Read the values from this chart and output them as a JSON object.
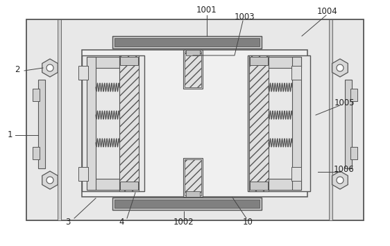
{
  "bg": "#ffffff",
  "plate_fc": "#e8e8e8",
  "plate_ec": "#555555",
  "light_fc": "#f0f0f0",
  "mid_fc": "#d0d0d0",
  "hatch_fc": "#e0e0e0",
  "bar_fc": "#c0c0c0",
  "dark_bar_fc": "#888888",
  "spring_color": "#555555",
  "line_color": "#555555",
  "ann_color": "#444444",
  "font_size": 8.5
}
